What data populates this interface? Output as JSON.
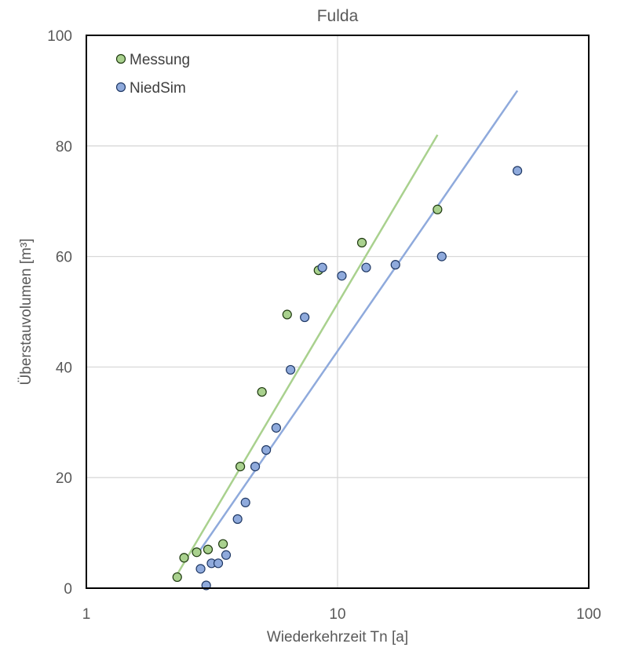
{
  "chart_data": {
    "type": "scatter",
    "title": "Fulda",
    "xlabel": "Wiederkehrzeit Tn [a]",
    "ylabel": "Überstauvolumen  [m³]",
    "x_scale": "log",
    "xlim": [
      1,
      100
    ],
    "ylim": [
      0,
      100
    ],
    "x_ticks": [
      "1",
      "10",
      "100"
    ],
    "y_ticks": [
      "0",
      "20",
      "40",
      "60",
      "80",
      "100"
    ],
    "grid": true,
    "legend_position": "top-left",
    "series": [
      {
        "name": "Messung",
        "color": "#70ad47",
        "marker_fill": "#a9d18e",
        "trendline": {
          "type": "logarithmic",
          "x_range": [
            2.3,
            25
          ],
          "y_range": [
            2.5,
            82
          ]
        },
        "points": [
          {
            "x": 2.3,
            "y": 2
          },
          {
            "x": 2.45,
            "y": 5.5
          },
          {
            "x": 2.75,
            "y": 6.5
          },
          {
            "x": 3.05,
            "y": 7
          },
          {
            "x": 3.5,
            "y": 8
          },
          {
            "x": 4.1,
            "y": 22
          },
          {
            "x": 5.0,
            "y": 35.5
          },
          {
            "x": 6.3,
            "y": 49.5
          },
          {
            "x": 8.4,
            "y": 57.5
          },
          {
            "x": 12.5,
            "y": 62.5
          },
          {
            "x": 25,
            "y": 68.5
          }
        ]
      },
      {
        "name": "NiedSim",
        "color": "#4472c4",
        "marker_fill": "#8faadc",
        "trendline": {
          "type": "logarithmic",
          "x_range": [
            2.8,
            52
          ],
          "y_range": [
            6.5,
            90
          ]
        },
        "points": [
          {
            "x": 3.0,
            "y": 0.5
          },
          {
            "x": 2.85,
            "y": 3.5
          },
          {
            "x": 3.15,
            "y": 4.5
          },
          {
            "x": 3.35,
            "y": 4.5
          },
          {
            "x": 3.6,
            "y": 6
          },
          {
            "x": 4.0,
            "y": 12.5
          },
          {
            "x": 4.3,
            "y": 15.5
          },
          {
            "x": 4.7,
            "y": 22
          },
          {
            "x": 5.2,
            "y": 25
          },
          {
            "x": 5.7,
            "y": 29
          },
          {
            "x": 6.5,
            "y": 39.5
          },
          {
            "x": 7.4,
            "y": 49
          },
          {
            "x": 8.7,
            "y": 58
          },
          {
            "x": 10.4,
            "y": 56.5
          },
          {
            "x": 13,
            "y": 58
          },
          {
            "x": 17,
            "y": 58.5
          },
          {
            "x": 26,
            "y": 60
          },
          {
            "x": 52,
            "y": 75.5
          }
        ]
      }
    ]
  }
}
